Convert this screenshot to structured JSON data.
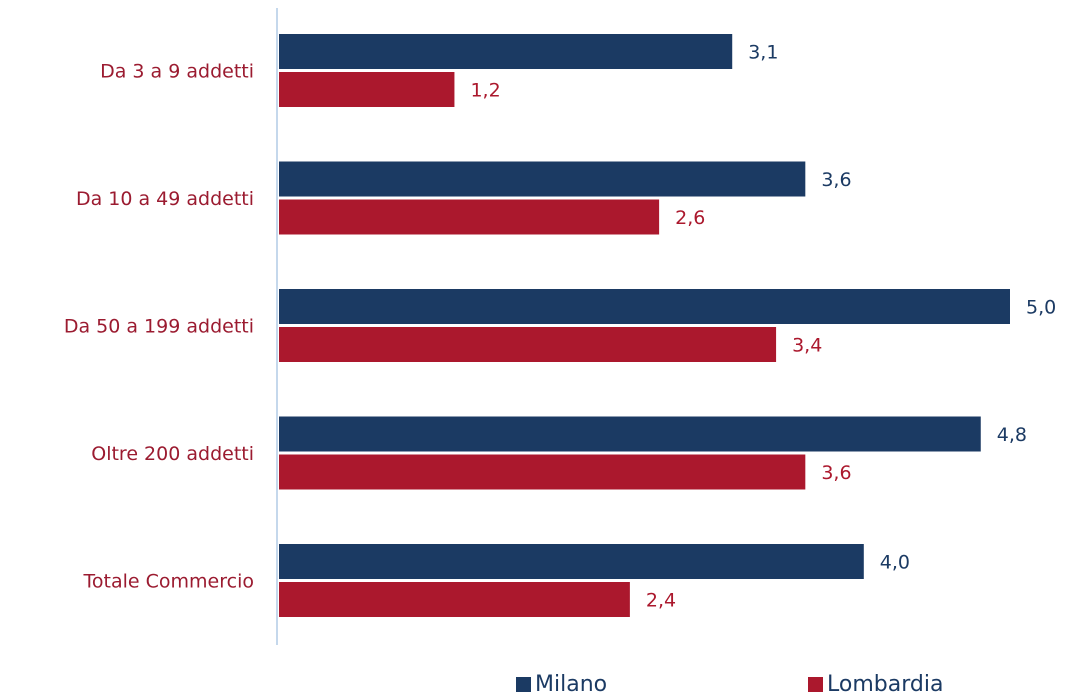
{
  "chart_data": {
    "type": "bar",
    "orientation": "horizontal",
    "categories": [
      "Da 3 a 9 addetti",
      "Da 10 a 49 addetti",
      "Da 50 a 199 addetti",
      "Oltre 200 addetti",
      "Totale Commercio"
    ],
    "series": [
      {
        "name": "Milano",
        "color": "#1b3a63",
        "values": [
          3.1,
          3.6,
          5.0,
          4.8,
          4.0
        ],
        "labels": [
          "3,1",
          "3,6",
          "5,0",
          "4,8",
          "4,0"
        ]
      },
      {
        "name": "Lombardia",
        "color": "#ab182d",
        "values": [
          1.2,
          2.6,
          3.4,
          3.6,
          2.4
        ],
        "labels": [
          "1,2",
          "2,6",
          "3,4",
          "3,6",
          "2,4"
        ]
      }
    ],
    "xlim": [
      0,
      5.0
    ],
    "grid": false,
    "legend_position": "bottom"
  },
  "colors": {
    "category_label": "#9b1b30",
    "axis_line": "#c5d8ec"
  }
}
